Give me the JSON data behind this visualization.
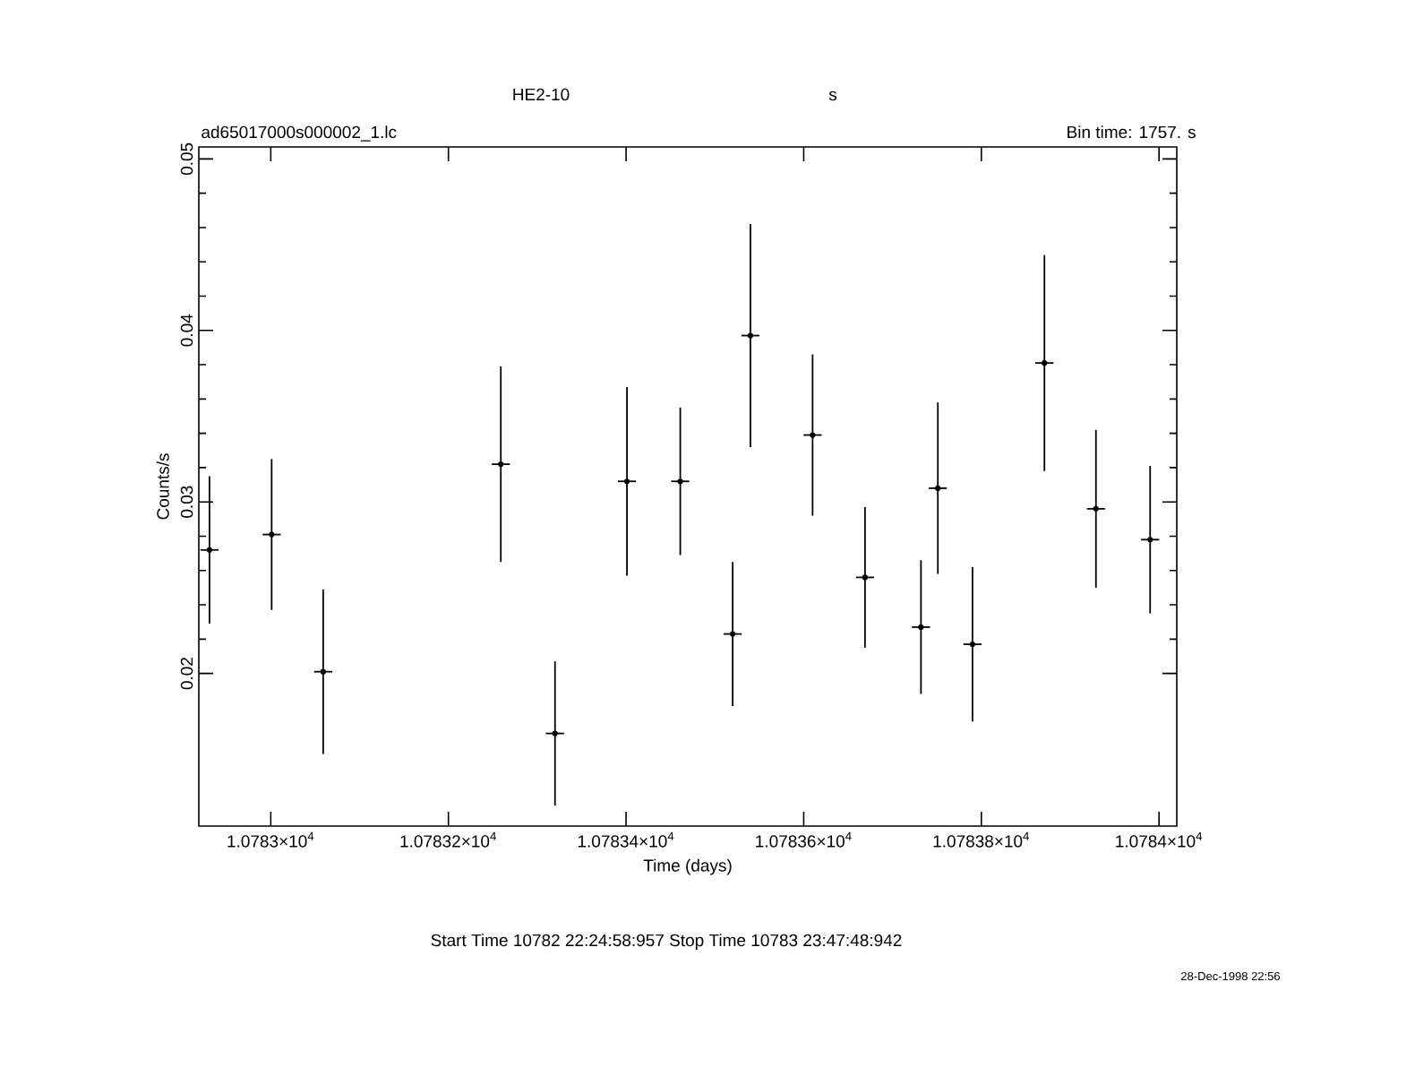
{
  "chart_data": {
    "type": "scatter",
    "title": "HE2-10",
    "subtitle": "ad65017000s000002_1.lc",
    "xlabel": "Time (days)",
    "ylabel": "Counts/s",
    "annotations": [
      "s",
      "Bin time:    1757.    s",
      "Start Time 10782 22:24:58:957     Stop Time 10783 23:47:48:942",
      "28-Dec-1998 22:56"
    ],
    "x": [
      10782.931,
      10783.001,
      10783.059,
      10783.26,
      10783.321,
      10783.401,
      10783.461,
      10783.521,
      10783.541,
      10783.611,
      10783.67,
      10783.732,
      10783.751,
      10783.791,
      10783.872,
      10783.93,
      10783.991
    ],
    "values": [
      0.0272,
      0.0281,
      0.0201,
      0.0322,
      0.0165,
      0.0312,
      0.0312,
      0.0223,
      0.0397,
      0.0339,
      0.0256,
      0.0227,
      0.0308,
      0.0217,
      0.0381,
      0.0296,
      0.0278
    ],
    "errors": [
      0.0043,
      0.0044,
      0.0048,
      0.0057,
      0.0042,
      0.0055,
      0.0043,
      0.0042,
      0.0065,
      0.0047,
      0.0041,
      0.0039,
      0.005,
      0.0045,
      0.0063,
      0.0046,
      0.0043
    ],
    "xerrors": [
      0.0102,
      0.0102,
      0.0102,
      0.0102,
      0.0102,
      0.0102,
      0.0102,
      0.0102,
      0.0102,
      0.0102,
      0.0102,
      0.0102,
      0.0102,
      0.0102,
      0.0102,
      0.0102,
      0.0102
    ],
    "color": "#000000",
    "marker": "circle",
    "xlim": [
      10782.919,
      10784.02
    ],
    "ylim": [
      0.0111,
      0.0507
    ],
    "xticks": [
      {
        "value": 10783,
        "label": "1.0783×10$^{4}$"
      },
      {
        "value": 10783.2,
        "label": "1.07832×10$^{4}$"
      },
      {
        "value": 10783.4,
        "label": "1.07834×10$^{4}$"
      },
      {
        "value": 10783.6,
        "label": "1.07836×10$^{4}$"
      },
      {
        "value": 10783.8,
        "label": "1.07838×10$^{4}$"
      },
      {
        "value": 10784,
        "label": "1.0784×10$^{4}$"
      }
    ],
    "yticks": [
      0.02,
      0.03,
      0.04,
      0.05
    ]
  }
}
